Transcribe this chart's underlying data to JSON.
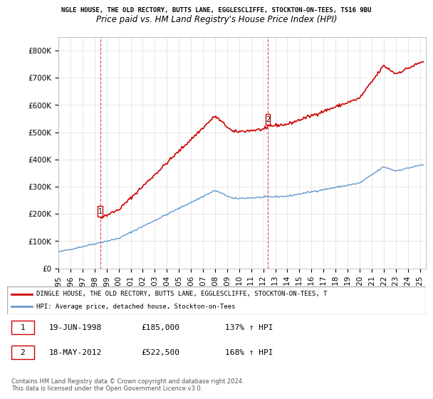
{
  "title_top": "NGLE HOUSE, THE OLD RECTORY, BUTTS LANE, EGGLESCLIFFE, STOCKTON-ON-TEES, TS16 9BU",
  "title_main": "Price paid vs. HM Land Registry's House Price Index (HPI)",
  "ylabel": "",
  "xlim_start": 1995.0,
  "xlim_end": 2025.5,
  "ylim_min": 0,
  "ylim_max": 850000,
  "transaction1_date": 1998.46,
  "transaction1_price": 185000,
  "transaction1_label": "1",
  "transaction2_date": 2012.38,
  "transaction2_price": 522500,
  "transaction2_label": "2",
  "red_line_color": "#cc0000",
  "blue_line_color": "#6699cc",
  "marker_box_color": "#cc0000",
  "grid_color": "#dddddd",
  "background_color": "#ffffff",
  "legend_line1": "DINGLE HOUSE, THE OLD RECTORY, BUTTS LANE, EGGLESCLIFFE, STOCKTON-ON-TEES, T",
  "legend_line2": "HPI: Average price, detached house, Stockton-on-Tees",
  "table_row1": [
    "1",
    "19-JUN-1998",
    "£185,000",
    "137% ↑ HPI"
  ],
  "table_row2": [
    "2",
    "18-MAY-2012",
    "£522,500",
    "168% ↑ HPI"
  ],
  "footer": "Contains HM Land Registry data © Crown copyright and database right 2024.\nThis data is licensed under the Open Government Licence v3.0."
}
